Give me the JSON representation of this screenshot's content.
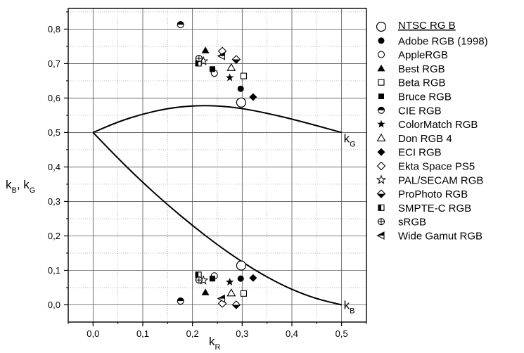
{
  "chart_data": {
    "type": "scatter",
    "x_axis": {
      "label_main": "k",
      "label_sub": "R",
      "range": [
        -0.05,
        0.55
      ],
      "ticks": [
        "0,0",
        "0,1",
        "0,2",
        "0,3",
        "0,4",
        "0,5"
      ],
      "tick_values": [
        0.0,
        0.1,
        0.2,
        0.3,
        0.4,
        0.5
      ]
    },
    "y_axis": {
      "label_parts": [
        {
          "t": "k",
          "sub": false
        },
        {
          "t": "B",
          "sub": true
        },
        {
          "t": ", k",
          "sub": false
        },
        {
          "t": "G",
          "sub": true
        }
      ],
      "range": [
        -0.05,
        0.86
      ],
      "ticks": [
        "0,0",
        "0,1",
        "0,2",
        "0,3",
        "0,4",
        "0,5",
        "0,6",
        "0,7",
        "0,8"
      ],
      "tick_values": [
        0.0,
        0.1,
        0.2,
        0.3,
        0.4,
        0.5,
        0.6,
        0.7,
        0.8
      ]
    },
    "grid": true,
    "legend_position": "right",
    "curves": [
      {
        "label_main": "k",
        "label_sub": "G",
        "points": [
          [
            0.0,
            0.5
          ],
          [
            0.05,
            0.531
          ],
          [
            0.1,
            0.554
          ],
          [
            0.15,
            0.57
          ],
          [
            0.2,
            0.578
          ],
          [
            0.25,
            0.578
          ],
          [
            0.3,
            0.57
          ],
          [
            0.35,
            0.556
          ],
          [
            0.4,
            0.539
          ],
          [
            0.45,
            0.52
          ],
          [
            0.5,
            0.5
          ]
        ]
      },
      {
        "label_main": "k",
        "label_sub": "B",
        "points": [
          [
            0.0,
            0.5
          ],
          [
            0.05,
            0.425
          ],
          [
            0.1,
            0.355
          ],
          [
            0.15,
            0.29
          ],
          [
            0.2,
            0.23
          ],
          [
            0.25,
            0.174
          ],
          [
            0.3,
            0.124
          ],
          [
            0.35,
            0.08
          ],
          [
            0.4,
            0.044
          ],
          [
            0.45,
            0.017
          ],
          [
            0.5,
            0.0
          ]
        ]
      }
    ],
    "series": [
      {
        "name": "NTSC   RG B",
        "underline": true,
        "marker": "circle-open-large",
        "points": [
          [
            0.298,
            0.587
          ],
          [
            0.298,
            0.114
          ]
        ]
      },
      {
        "name": "Adobe RGB (1998)",
        "marker": "circle-filled",
        "points": [
          [
            0.297,
            0.627
          ],
          [
            0.297,
            0.076
          ]
        ]
      },
      {
        "name": "AppleRGB",
        "marker": "circle-open",
        "points": [
          [
            0.244,
            0.672
          ],
          [
            0.244,
            0.084
          ]
        ]
      },
      {
        "name": "Best RGB",
        "marker": "triangle-filled",
        "points": [
          [
            0.226,
            0.738
          ],
          [
            0.226,
            0.036
          ]
        ]
      },
      {
        "name": "Beta RGB",
        "marker": "square-open",
        "points": [
          [
            0.303,
            0.664
          ],
          [
            0.303,
            0.033
          ]
        ]
      },
      {
        "name": "Bruce RGB",
        "marker": "square-filled",
        "points": [
          [
            0.24,
            0.684
          ],
          [
            0.24,
            0.076
          ]
        ]
      },
      {
        "name": "CIE RGB",
        "marker": "circle-half",
        "points": [
          [
            0.176,
            0.813
          ],
          [
            0.176,
            0.011
          ]
        ]
      },
      {
        "name": "ColorMatch RGB",
        "marker": "star-filled",
        "points": [
          [
            0.275,
            0.659
          ],
          [
            0.275,
            0.066
          ]
        ]
      },
      {
        "name": "Don RGB 4",
        "marker": "triangle-open",
        "points": [
          [
            0.278,
            0.688
          ],
          [
            0.278,
            0.034
          ]
        ]
      },
      {
        "name": "ECI RGB",
        "marker": "diamond-filled",
        "points": [
          [
            0.322,
            0.603
          ],
          [
            0.322,
            0.078
          ]
        ]
      },
      {
        "name": "Ekta Space PS5",
        "marker": "diamond-open",
        "points": [
          [
            0.26,
            0.736
          ],
          [
            0.26,
            0.004
          ]
        ]
      },
      {
        "name": "PAL/SECAM RGB",
        "marker": "star-open",
        "points": [
          [
            0.222,
            0.707
          ],
          [
            0.222,
            0.071
          ]
        ]
      },
      {
        "name": "ProPhoto RGB",
        "marker": "diamond-half",
        "points": [
          [
            0.288,
            0.712
          ],
          [
            0.288,
            0.0
          ]
        ]
      },
      {
        "name": "SMPTE-C RGB",
        "marker": "square-half",
        "points": [
          [
            0.212,
            0.701
          ],
          [
            0.212,
            0.087
          ]
        ]
      },
      {
        "name": "sRGB",
        "marker": "circle-plus",
        "points": [
          [
            0.213,
            0.715
          ],
          [
            0.213,
            0.072
          ]
        ]
      },
      {
        "name": "Wide Gamut RGB",
        "marker": "triangle-left",
        "points": [
          [
            0.259,
            0.722
          ],
          [
            0.259,
            0.018
          ]
        ]
      }
    ]
  }
}
